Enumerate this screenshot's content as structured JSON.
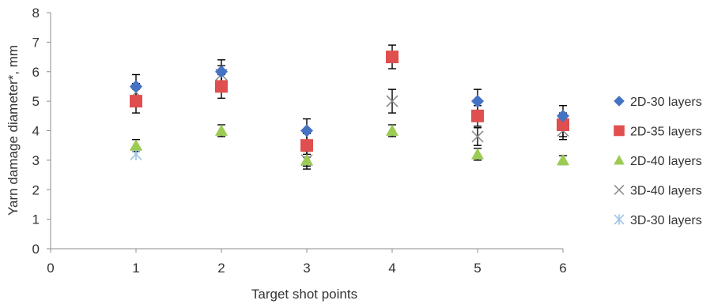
{
  "chart_data": {
    "type": "scatter",
    "title": "",
    "xlabel": "Target shot points",
    "ylabel": "Yarn damage diameter*, mm",
    "xlim": [
      0,
      6
    ],
    "ylim": [
      0,
      8
    ],
    "xticks": [
      "0",
      "1",
      "2",
      "3",
      "4",
      "5",
      "6"
    ],
    "yticks": [
      "0",
      "1",
      "2",
      "3",
      "4",
      "5",
      "6",
      "7",
      "8"
    ],
    "grid": false,
    "legend_position": "right",
    "series": [
      {
        "name": "2D-30 layers",
        "marker": "diamond",
        "color": "#4472C4",
        "x": [
          1,
          2,
          3,
          5,
          6
        ],
        "y": [
          5.5,
          6.0,
          4.0,
          5.0,
          4.5
        ],
        "err": [
          0.4,
          0.4,
          0.4,
          0.4,
          0.35
        ]
      },
      {
        "name": "2D-35 layers",
        "marker": "square",
        "color": "#E04F4F",
        "x": [
          1,
          2,
          3,
          4,
          5,
          6
        ],
        "y": [
          5.0,
          5.5,
          3.5,
          6.5,
          4.5,
          4.2
        ],
        "err": [
          0.4,
          0.4,
          0.4,
          0.4,
          0.35,
          0.4
        ]
      },
      {
        "name": "2D-40 layers",
        "marker": "triangle",
        "color": "#9BCB53",
        "x": [
          1,
          2,
          3,
          4,
          5,
          6
        ],
        "y": [
          3.5,
          4.0,
          3.0,
          4.0,
          3.2,
          3.0
        ],
        "err": [
          0.2,
          0.2,
          0.2,
          0.2,
          0.2,
          0.15
        ]
      },
      {
        "name": "3D-40 layers",
        "marker": "x",
        "color": "#8E8E8E",
        "x": [
          1,
          2,
          3,
          4,
          5,
          6
        ],
        "y": [
          5.3,
          5.9,
          3.0,
          5.0,
          3.8,
          4.0
        ],
        "err": [
          0.3,
          0.3,
          0.3,
          0.4,
          0.3,
          0.3
        ]
      },
      {
        "name": "3D-30 layers",
        "marker": "asterisk",
        "color": "#9DC3E6",
        "x": [
          1
        ],
        "y": [
          3.2
        ],
        "err": [
          0
        ]
      }
    ]
  }
}
